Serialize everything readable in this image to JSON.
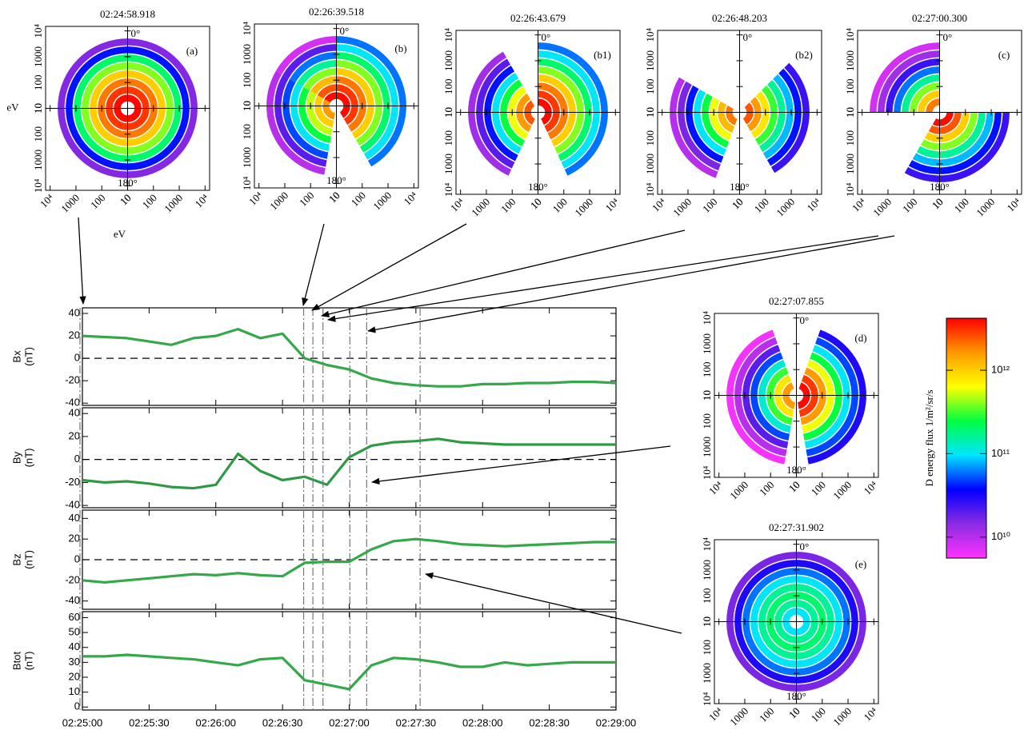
{
  "chart_data": [
    {
      "type": "line",
      "ylabel": "Bx",
      "yunit": "(nT)",
      "color": "#35a84a",
      "zero_line": true,
      "xlim": [
        "02:25:00",
        "02:29:00"
      ],
      "ylim": [
        -42,
        45
      ],
      "yticks": [
        -40,
        -20,
        0,
        20,
        40
      ],
      "x": [
        "02:25:00",
        "02:25:10",
        "02:25:20",
        "02:25:30",
        "02:25:40",
        "02:25:50",
        "02:26:00",
        "02:26:10",
        "02:26:20",
        "02:26:30",
        "02:26:40",
        "02:26:50",
        "02:27:00",
        "02:27:10",
        "02:27:20",
        "02:27:30",
        "02:27:40",
        "02:27:50",
        "02:28:00",
        "02:28:10",
        "02:28:20",
        "02:28:30",
        "02:28:40",
        "02:28:50",
        "02:29:00"
      ],
      "values": [
        20,
        19,
        18,
        15,
        12,
        18,
        20,
        26,
        18,
        22,
        0,
        -6,
        -10,
        -18,
        -22,
        -24,
        -25,
        -25,
        -23,
        -23,
        -22,
        -22,
        -21,
        -21,
        -22
      ]
    },
    {
      "type": "line",
      "ylabel": "By",
      "yunit": "(nT)",
      "color": "#2e9a46",
      "zero_line": true,
      "xlim": [
        "02:25:00",
        "02:29:00"
      ],
      "ylim": [
        -42,
        45
      ],
      "yticks": [
        -40,
        -20,
        0,
        20,
        40
      ],
      "x": [
        "02:25:00",
        "02:25:10",
        "02:25:20",
        "02:25:30",
        "02:25:40",
        "02:25:50",
        "02:26:00",
        "02:26:10",
        "02:26:20",
        "02:26:30",
        "02:26:40",
        "02:26:50",
        "02:27:00",
        "02:27:10",
        "02:27:20",
        "02:27:30",
        "02:27:40",
        "02:27:50",
        "02:28:00",
        "02:28:10",
        "02:28:20",
        "02:28:30",
        "02:28:40",
        "02:28:50",
        "02:29:00"
      ],
      "values": [
        -18,
        -20,
        -19,
        -21,
        -24,
        -25,
        -22,
        5,
        -10,
        -18,
        -15,
        -22,
        2,
        12,
        15,
        16,
        18,
        15,
        14,
        13,
        13,
        13,
        13,
        13,
        13
      ]
    },
    {
      "type": "line",
      "ylabel": "Bz",
      "yunit": "(nT)",
      "color": "#35a84a",
      "zero_line": true,
      "xlim": [
        "02:25:00",
        "02:29:00"
      ],
      "ylim": [
        -48,
        48
      ],
      "yticks": [
        -40,
        -20,
        0,
        20,
        40
      ],
      "x": [
        "02:25:00",
        "02:25:10",
        "02:25:20",
        "02:25:30",
        "02:25:40",
        "02:25:50",
        "02:26:00",
        "02:26:10",
        "02:26:20",
        "02:26:30",
        "02:26:40",
        "02:26:50",
        "02:27:00",
        "02:27:10",
        "02:27:20",
        "02:27:30",
        "02:27:40",
        "02:27:50",
        "02:28:00",
        "02:28:10",
        "02:28:20",
        "02:28:30",
        "02:28:40",
        "02:28:50",
        "02:29:00"
      ],
      "values": [
        -20,
        -22,
        -20,
        -18,
        -16,
        -14,
        -15,
        -13,
        -15,
        -16,
        -3,
        -2,
        -2,
        10,
        18,
        20,
        18,
        15,
        14,
        13,
        14,
        15,
        16,
        17,
        17
      ]
    },
    {
      "type": "line",
      "ylabel": "Btot",
      "yunit": "(nT)",
      "color": "#35a84a",
      "zero_line": false,
      "xlim": [
        "02:25:00",
        "02:29:00"
      ],
      "ylim": [
        -2,
        64
      ],
      "yticks": [
        0,
        10,
        20,
        30,
        40,
        50,
        60
      ],
      "xticks": [
        "02:25:00",
        "02:25:30",
        "02:26:00",
        "02:26:30",
        "02:27:00",
        "02:27:30",
        "02:28:00",
        "02:28:30",
        "02:29:00"
      ],
      "x": [
        "02:25:00",
        "02:25:10",
        "02:25:20",
        "02:25:30",
        "02:25:40",
        "02:25:50",
        "02:26:00",
        "02:26:10",
        "02:26:20",
        "02:26:30",
        "02:26:40",
        "02:26:50",
        "02:27:00",
        "02:27:10",
        "02:27:20",
        "02:27:30",
        "02:27:40",
        "02:27:50",
        "02:28:00",
        "02:28:10",
        "02:28:20",
        "02:28:30",
        "02:28:40",
        "02:28:50",
        "02:29:00"
      ],
      "values": [
        34,
        34,
        35,
        34,
        33,
        32,
        30,
        28,
        32,
        33,
        18,
        15,
        12,
        28,
        33,
        32,
        30,
        27,
        27,
        30,
        28,
        29,
        30,
        30,
        30
      ]
    },
    {
      "type": "polar",
      "title": "02:24:58.918",
      "label": "(a)",
      "unit": "eV",
      "rlim": [
        10,
        15000
      ],
      "rticks": [
        10,
        100,
        1000,
        {
          "value": 10000,
          "label": "10⁴"
        }
      ],
      "angle_labels": [
        "0°",
        "180°"
      ],
      "sectors": [
        {
          "from": 0,
          "to": 360,
          "flux": [
            4000000000000.0,
            3000000000000.0,
            2000000000000.0,
            1000000000000.0,
            400000000000.0,
            200000000000.0,
            40000000000.0,
            15000000000.0
          ]
        }
      ]
    },
    {
      "type": "polar",
      "title": "02:26:39.518",
      "label": "(b)",
      "sectors": [
        {
          "from": 0,
          "to": 150,
          "flux": [
            4000000000000.0,
            3000000000000.0,
            2000000000000.0,
            1000000000000.0,
            400000000000.0,
            200000000000.0,
            100000000000.0,
            60000000000.0
          ]
        },
        {
          "from": 190,
          "to": 300,
          "flux": [
            1600000000000.0,
            1000000000000.0,
            500000000000.0,
            250000000000.0,
            100000000000.0,
            50000000000.0,
            20000000000.0,
            10000000000.0
          ]
        },
        {
          "from": 300,
          "to": 360,
          "flux": [
            4000000000000.0,
            2500000000000.0,
            1200000000000.0,
            400000000000.0,
            160000000000.0,
            60000000000.0,
            20000000000.0,
            8000000000.0
          ]
        }
      ]
    },
    {
      "type": "polar",
      "title": "02:26:43.679",
      "label": "(b1)",
      "sectors": [
        {
          "from": 0,
          "to": 155,
          "flux": [
            4000000000000.0,
            3000000000000.0,
            2000000000000.0,
            1000000000000.0,
            400000000000.0,
            200000000000.0,
            100000000000.0,
            60000000000.0
          ]
        },
        {
          "from": 205,
          "to": 330,
          "flux": [
            2500000000000.0,
            1600000000000.0,
            600000000000.0,
            250000000000.0,
            100000000000.0,
            40000000000.0,
            20000000000.0,
            12000000000.0
          ]
        }
      ]
    },
    {
      "type": "polar",
      "title": "02:26:48.203",
      "label": "(b2)",
      "sectors": [
        {
          "from": 45,
          "to": 150,
          "flux": [
            2500000000000.0,
            1600000000000.0,
            800000000000.0,
            300000000000.0,
            160000000000.0,
            80000000000.0,
            40000000000.0,
            25000000000.0
          ]
        },
        {
          "from": 200,
          "to": 300,
          "flux": [
            2000000000000.0,
            1200000000000.0,
            600000000000.0,
            250000000000.0,
            100000000000.0,
            40000000000.0,
            16000000000.0,
            10000000000.0
          ]
        }
      ]
    },
    {
      "type": "polar",
      "title": "02:27:00.300",
      "label": "(c)",
      "sectors": [
        {
          "from": 90,
          "to": 210,
          "flux": [
            4000000000000.0,
            2500000000000.0,
            1000000000000.0,
            400000000000.0,
            160000000000.0,
            80000000000.0,
            40000000000.0,
            25000000000.0
          ]
        },
        {
          "from": 270,
          "to": 360,
          "flux": [
            2000000000000.0,
            1000000000000.0,
            400000000000.0,
            160000000000.0,
            60000000000.0,
            25000000000.0,
            12000000000.0,
            8000000000.0
          ]
        }
      ]
    },
    {
      "type": "polar",
      "title": "02:27:07.855",
      "label": "(d)",
      "sectors": [
        {
          "from": 20,
          "to": 170,
          "flux": [
            4000000000000.0,
            3000000000000.0,
            1600000000000.0,
            600000000000.0,
            250000000000.0,
            100000000000.0,
            50000000000.0,
            30000000000.0
          ]
        },
        {
          "from": 190,
          "to": 340,
          "flux": [
            1600000000000.0,
            800000000000.0,
            300000000000.0,
            120000000000.0,
            50000000000.0,
            20000000000.0,
            10000000000.0,
            6000000000.0
          ]
        }
      ]
    },
    {
      "type": "polar",
      "title": "02:27:31.902",
      "label": "(e)",
      "sectors": [
        {
          "from": 0,
          "to": 360,
          "flux": [
            100000000000.0,
            160000000000.0,
            200000000000.0,
            160000000000.0,
            100000000000.0,
            60000000000.0,
            30000000000.0,
            16000000000.0
          ]
        }
      ]
    },
    {
      "type": "colorbar",
      "label": "D energy flux 1/m²/sr/s",
      "log": true,
      "zlim": [
        5600000000.0,
        4200000000000.0
      ],
      "colors": [
        "#ff33ff",
        "#8a2be2",
        "#0000ff",
        "#00e5ff",
        "#00ff40",
        "#ffff00",
        "#ff9900",
        "#ff0000"
      ],
      "ticks": [
        {
          "value": 10000000000.0,
          "label": "10¹⁰"
        },
        {
          "value": 100000000000.0,
          "label": "10¹¹"
        },
        {
          "value": 1000000000000.0,
          "label": "10¹²"
        }
      ]
    }
  ]
}
